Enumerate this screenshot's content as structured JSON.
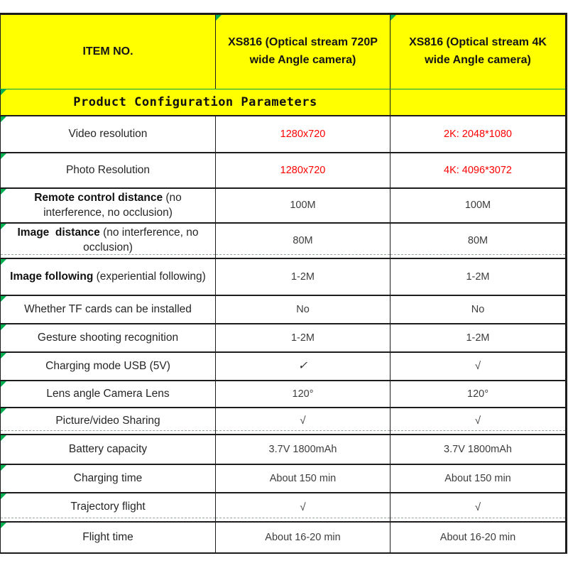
{
  "table": {
    "header": {
      "item_no": "ITEM NO.",
      "col_720p": "XS816 (Optical stream 720P wide Angle camera)",
      "col_4k": "XS816 (Optical stream 4K wide Angle camera)"
    },
    "section_title": "Product Configuration Parameters",
    "rows": [
      {
        "label_bold": "",
        "label": "Video resolution",
        "col_720p": "1280x720",
        "col_4k": "2K: 2048*1080",
        "value_color": "#ff0000"
      },
      {
        "label_bold": "",
        "label": "Photo Resolution",
        "col_720p": "1280x720",
        "col_4k": "4K: 4096*3072",
        "value_color": "#ff0000"
      },
      {
        "label_bold": "Remote control distance",
        "label": " (no interference, no occlusion)",
        "col_720p": "100M",
        "col_4k": "100M"
      },
      {
        "label_bold": "Image  distance",
        "label": " (no interference, no occlusion)",
        "col_720p": "80M",
        "col_4k": "80M"
      },
      {
        "label_bold": "Image following",
        "label": " (experiential following)",
        "col_720p": "1-2M",
        "col_4k": "1-2M"
      },
      {
        "label_bold": "",
        "label": "Whether TF cards can be installed",
        "col_720p": "No",
        "col_4k": "No"
      },
      {
        "label_bold": "",
        "label": "Gesture shooting recognition",
        "col_720p": "1-2M",
        "col_4k": "1-2M"
      },
      {
        "label_bold": "",
        "label": "Charging mode USB (5V)",
        "col_720p": "✓",
        "col_4k": "√"
      },
      {
        "label_bold": "",
        "label": "Lens angle Camera Lens",
        "col_720p": "120°",
        "col_4k": "120°"
      },
      {
        "label_bold": "",
        "label": "Picture/video Sharing",
        "col_720p": "√",
        "col_4k": "√"
      },
      {
        "label_bold": "",
        "label": "Battery capacity",
        "col_720p": "3.7V 1800mAh",
        "col_4k": "3.7V 1800mAh"
      },
      {
        "label_bold": "",
        "label": "Charging time",
        "col_720p": "About 150 min",
        "col_4k": "About 150 min"
      },
      {
        "label_bold": "",
        "label": "Trajectory flight",
        "col_720p": "√",
        "col_4k": "√"
      },
      {
        "label_bold": "",
        "label": "Flight time",
        "col_720p": "About 16-20 min",
        "col_4k": "About 16-20 min"
      }
    ],
    "colors": {
      "header_background": "#ffff00",
      "highlight_value_red": "#ff0000",
      "grid_line_green": "#00a550",
      "corner_marker_green": "#00b050"
    }
  }
}
